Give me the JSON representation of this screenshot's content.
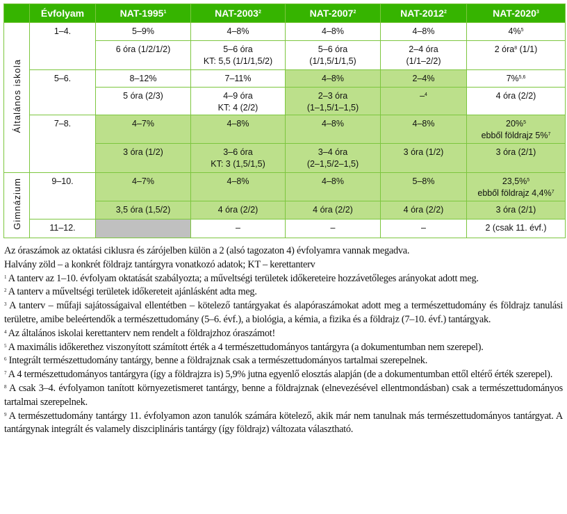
{
  "colors": {
    "header": "#36b400",
    "highlight": "#bce08b",
    "border": "#7cc63e",
    "gray": "#c0c0c0"
  },
  "table": {
    "headers": [
      {
        "t": ""
      },
      {
        "t": "Évfolyam"
      },
      {
        "t": "NAT-1995",
        "s": "1"
      },
      {
        "t": "NAT-2003",
        "s": "2"
      },
      {
        "t": "NAT-2007",
        "s": "2"
      },
      {
        "t": "NAT-2012",
        "s": "2"
      },
      {
        "t": "NAT-2020",
        "s": "3"
      }
    ],
    "groups": [
      {
        "label": "Általános iskola",
        "grades": [
          {
            "grade": "1–4.",
            "rows": [
              [
                {
                  "l": [
                    {
                      "t": "5–9%"
                    }
                  ]
                },
                {
                  "l": [
                    {
                      "t": "4–8%"
                    }
                  ]
                },
                {
                  "l": [
                    {
                      "t": "4–8%"
                    }
                  ]
                },
                {
                  "l": [
                    {
                      "t": "4–8%"
                    }
                  ]
                },
                {
                  "l": [
                    {
                      "t": "4%",
                      "s": "5"
                    }
                  ]
                }
              ],
              [
                {
                  "l": [
                    {
                      "t": "6 óra (1/2/1/2)"
                    }
                  ]
                },
                {
                  "l": [
                    {
                      "t": "5–6 óra"
                    },
                    {
                      "t": "KT: 5,5 (1/1/1,5/2)"
                    }
                  ]
                },
                {
                  "l": [
                    {
                      "t": "5–6 óra"
                    },
                    {
                      "t": "(1/1,5/1/1,5)"
                    }
                  ]
                },
                {
                  "l": [
                    {
                      "t": "2–4 óra"
                    },
                    {
                      "t": "(1/1–2/2)"
                    }
                  ]
                },
                {
                  "l": [
                    {
                      "t": "2 óra",
                      "s": "8",
                      "t2": " (1/1)"
                    }
                  ]
                }
              ]
            ]
          },
          {
            "grade": "5–6.",
            "rows": [
              [
                {
                  "l": [
                    {
                      "t": "8–12%"
                    }
                  ]
                },
                {
                  "l": [
                    {
                      "t": "7–11%"
                    }
                  ]
                },
                {
                  "l": [
                    {
                      "t": "4–8%"
                    }
                  ],
                  "hl": true
                },
                {
                  "l": [
                    {
                      "t": "2–4%"
                    }
                  ],
                  "hl": true
                },
                {
                  "l": [
                    {
                      "t": "7%",
                      "s": "5,6"
                    }
                  ]
                }
              ],
              [
                {
                  "l": [
                    {
                      "t": "5 óra (2/3)"
                    }
                  ]
                },
                {
                  "l": [
                    {
                      "t": "4–9 óra"
                    },
                    {
                      "t": "KT: 4 (2/2)"
                    }
                  ]
                },
                {
                  "l": [
                    {
                      "t": "2–3 óra"
                    },
                    {
                      "t": "(1–1,5/1–1,5)"
                    }
                  ],
                  "hl": true
                },
                {
                  "l": [
                    {
                      "t": "–",
                      "s": "4"
                    }
                  ],
                  "hl": true
                },
                {
                  "l": [
                    {
                      "t": "4 óra (2/2)"
                    }
                  ]
                }
              ]
            ]
          },
          {
            "grade": "7–8.",
            "rows": [
              [
                {
                  "l": [
                    {
                      "t": "4–7%"
                    }
                  ],
                  "hl": true
                },
                {
                  "l": [
                    {
                      "t": "4–8%"
                    }
                  ],
                  "hl": true
                },
                {
                  "l": [
                    {
                      "t": "4–8%"
                    }
                  ],
                  "hl": true
                },
                {
                  "l": [
                    {
                      "t": "4–8%"
                    }
                  ],
                  "hl": true
                },
                {
                  "l": [
                    {
                      "t": "20%",
                      "s": "5"
                    },
                    {
                      "t": "ebből földrajz 5%",
                      "s": "7"
                    }
                  ],
                  "hl": true
                }
              ],
              [
                {
                  "l": [
                    {
                      "t": "3 óra (1/2)"
                    }
                  ],
                  "hl": true
                },
                {
                  "l": [
                    {
                      "t": "3–6 óra"
                    },
                    {
                      "t": "KT: 3 (1,5/1,5)"
                    }
                  ],
                  "hl": true
                },
                {
                  "l": [
                    {
                      "t": "3–4 óra"
                    },
                    {
                      "t": "(2–1,5/2–1,5)"
                    }
                  ],
                  "hl": true
                },
                {
                  "l": [
                    {
                      "t": "3 óra (1/2)"
                    }
                  ],
                  "hl": true
                },
                {
                  "l": [
                    {
                      "t": "3 óra (2/1)"
                    }
                  ],
                  "hl": true
                }
              ]
            ]
          }
        ]
      },
      {
        "label": "Gimnázium",
        "grades": [
          {
            "grade": "9–10.",
            "rows": [
              [
                {
                  "l": [
                    {
                      "t": "4–7%"
                    }
                  ],
                  "hl": true
                },
                {
                  "l": [
                    {
                      "t": "4–8%"
                    }
                  ],
                  "hl": true
                },
                {
                  "l": [
                    {
                      "t": "4–8%"
                    }
                  ],
                  "hl": true
                },
                {
                  "l": [
                    {
                      "t": "5–8%"
                    }
                  ],
                  "hl": true
                },
                {
                  "l": [
                    {
                      "t": "23,5%",
                      "s": "5"
                    },
                    {
                      "t": "ebből földrajz 4,4%",
                      "s": "7"
                    }
                  ],
                  "hl": true
                }
              ],
              [
                {
                  "l": [
                    {
                      "t": "3,5 óra (1,5/2)"
                    }
                  ],
                  "hl": true
                },
                {
                  "l": [
                    {
                      "t": "4 óra (2/2)"
                    }
                  ],
                  "hl": true
                },
                {
                  "l": [
                    {
                      "t": "4 óra (2/2)"
                    }
                  ],
                  "hl": true
                },
                {
                  "l": [
                    {
                      "t": "4 óra (2/2)"
                    }
                  ],
                  "hl": true
                },
                {
                  "l": [
                    {
                      "t": "3 óra (2/1)"
                    }
                  ],
                  "hl": true
                }
              ]
            ]
          },
          {
            "grade": "11–12.",
            "rows": [
              [
                {
                  "l": [],
                  "gray": true
                },
                {
                  "l": [
                    {
                      "t": "–"
                    }
                  ]
                },
                {
                  "l": [
                    {
                      "t": "–"
                    }
                  ]
                },
                {
                  "l": [
                    {
                      "t": "–"
                    }
                  ]
                },
                {
                  "l": [
                    {
                      "t": "2 (csak 11. évf.)"
                    }
                  ]
                }
              ]
            ]
          }
        ]
      }
    ]
  },
  "notes": [
    {
      "t": "Az óraszámok az oktatási ciklusra és zárójelben külön a 2 (alsó tagozaton 4) évfolyamra vannak megadva."
    },
    {
      "t": "Halvány zöld – a konkrét földrajz tantárgyra vonatkozó adatok; KT – kerettanterv"
    },
    {
      "s": "1",
      "t": " A tanterv az 1–10. évfolyam oktatását szabályozta; a műveltségi területek időkereteire hozzávetőleges arányokat adott meg."
    },
    {
      "s": "2",
      "t": " A tanterv a műveltségi területek időkereteit ajánlásként adta meg."
    },
    {
      "s": "3",
      "t": " A tanterv – műfaji sajátosságaival ellentétben – kötelező tantárgyakat és alapóraszámokat adott meg a természettudomány és földrajz tanulási területre, amibe beleértendők a természettudomány (5–6. évf.), a biológia, a kémia, a fizika és a földrajz (7–10. évf.) tantárgyak."
    },
    {
      "s": "4",
      "t": " Az általános iskolai kerettanterv nem rendelt a földrajzhoz óraszámot!"
    },
    {
      "s": "5",
      "t": " A maximális időkerethez viszonyított számított érték a 4 természettudományos tantárgyra (a dokumentumban nem szerepel)."
    },
    {
      "s": "6",
      "t": " Integrált természettudomány tantárgy, benne a földrajznak csak a természettudományos tartalmai szerepelnek."
    },
    {
      "s": "7",
      "t": " A 4 természettudományos tantárgyra (így a földrajzra is) 5,9% jutna egyenlő elosztás alapján (de a dokumentumban ettől eltérő érték szerepel)."
    },
    {
      "s": "8",
      "t": " A csak 3–4. évfolyamon tanított környezetismeret tantárgy, benne a földrajznak (elnevezésével ellentmondásban) csak a természettudományos tartalmai szerepelnek."
    },
    {
      "s": "9",
      "t": " A természettudomány tantárgy 11. évfolyamon azon tanulók számára kötelező, akik már nem tanulnak más természettudományos tantárgyat. A tantárgynak integrált és valamely diszciplináris tantárgy (így földrajz) változata választható."
    }
  ]
}
